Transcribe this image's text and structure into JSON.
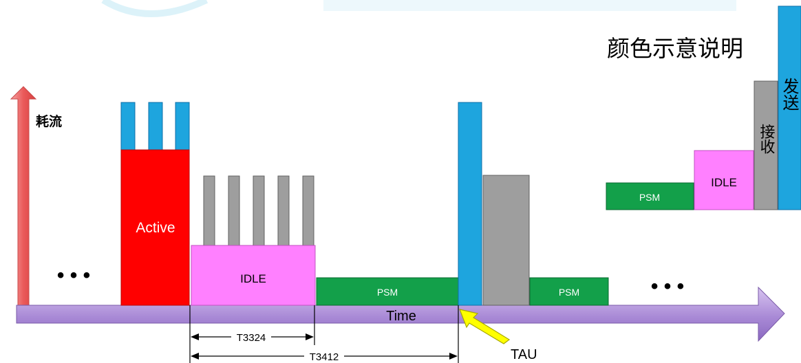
{
  "y_axis_label": "耗流",
  "x_axis_label": "Time",
  "legend": {
    "title": "颜色示意说明",
    "items": [
      {
        "label": "PSM",
        "color": "#13a04a"
      },
      {
        "label": "IDLE",
        "color": "#ff80ff"
      },
      {
        "label": "接收",
        "color": "#9e9e9e"
      },
      {
        "label": "发送",
        "color": "#1ea5de"
      }
    ]
  },
  "blocks": {
    "active_label": "Active",
    "idle_label": "IDLE",
    "psm_label_1": "PSM",
    "psm_label_2": "PSM"
  },
  "timers": {
    "t3324": "T3324",
    "t3412": "T3412"
  },
  "event_label": "TAU",
  "ellipsis": "• • •",
  "colors": {
    "send": "#1ea5de",
    "receive": "#9e9e9e",
    "idle": "#ff80ff",
    "psm": "#13a04a",
    "active": "#ff0000",
    "time_axis": "#b090d8",
    "power_axis": "#f07070",
    "tau_arrow": "#ffff00"
  }
}
